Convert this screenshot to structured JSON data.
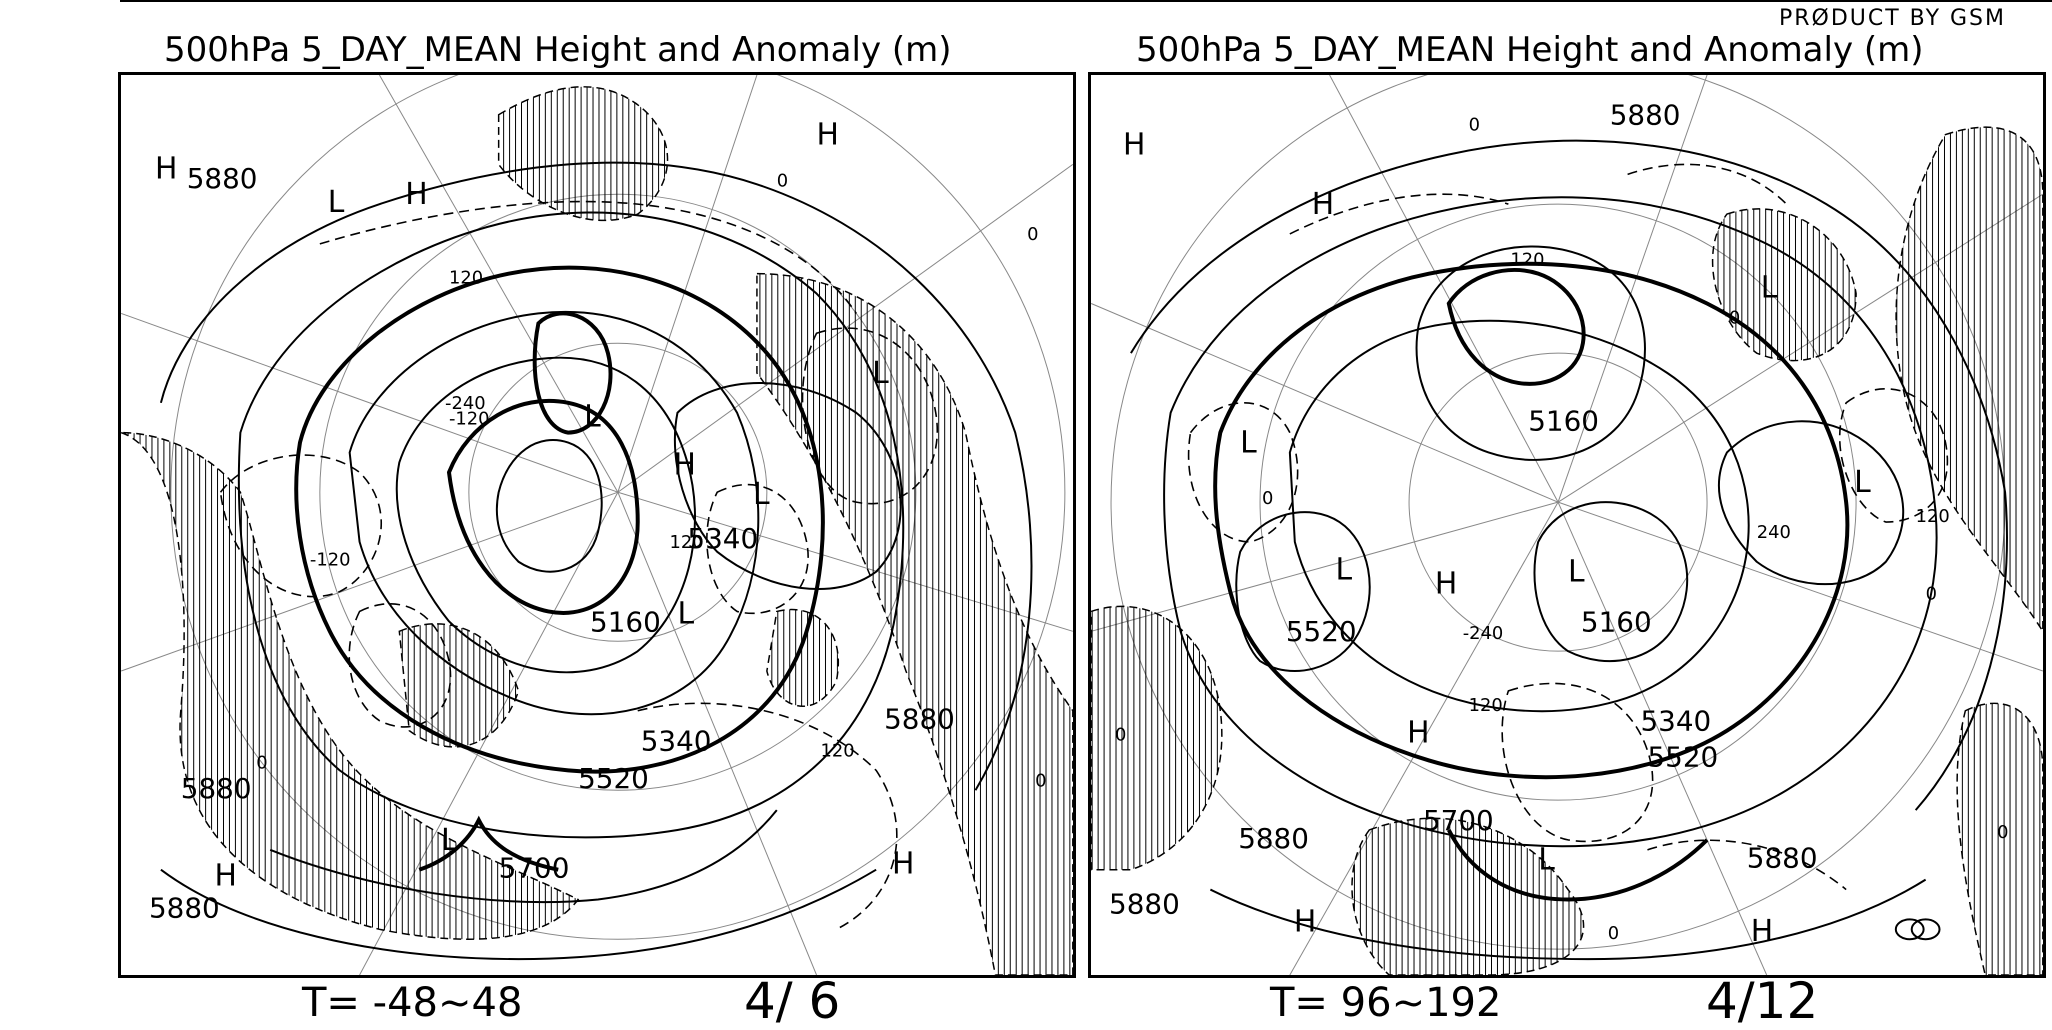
{
  "header": {
    "product": "PRØDUCT BY GSM"
  },
  "panels": [
    {
      "title": "500hPa 5_DAY_MEAN Height and Anomaly (m)",
      "time": "T= -48~48",
      "date": "4/ 6",
      "height_labels": [
        "5880",
        "5340",
        "5160",
        "5340",
        "5520",
        "5700",
        "5880",
        "5880",
        "5880"
      ],
      "pressure_centers": [
        "H",
        "L",
        "H",
        "H",
        "L",
        "L",
        "H",
        "L",
        "L",
        "H",
        "H",
        "L"
      ],
      "anomaly_labels": [
        "120",
        "-120",
        "0",
        "-120",
        "0",
        "0",
        "-240",
        "120",
        "120",
        "0"
      ]
    },
    {
      "title": "500hPa 5_DAY_MEAN Height and Anomaly (m)",
      "time": "T= 96~192",
      "date": "4/12",
      "height_labels": [
        "5880",
        "5160",
        "5520",
        "5160",
        "5340",
        "5520",
        "5700",
        "5880",
        "5880",
        "5880"
      ],
      "pressure_centers": [
        "H",
        "H",
        "L",
        "L",
        "L",
        "H",
        "L",
        "L",
        "H",
        "L",
        "H",
        "H"
      ],
      "anomaly_labels": [
        "0",
        "120",
        "0",
        "0",
        "-240",
        "120",
        "240",
        "120",
        "0",
        "0",
        "0",
        "0"
      ]
    }
  ]
}
